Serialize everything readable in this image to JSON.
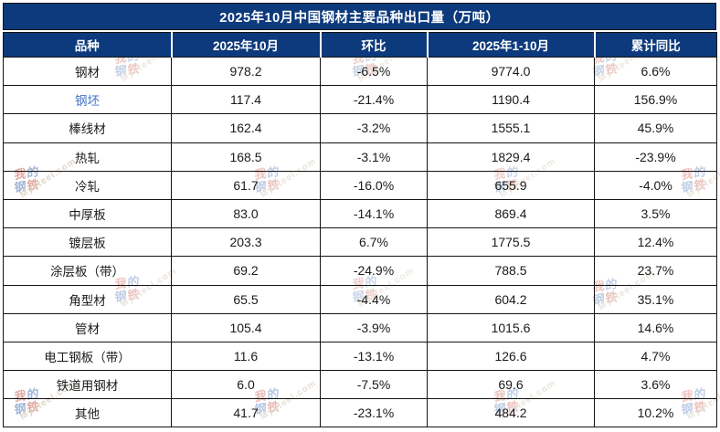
{
  "chart_data": {
    "type": "table",
    "title": "2025年10月中国钢材主要品种出口量（万吨）",
    "columns": [
      "品种",
      "2025年10月",
      "环比",
      "2025年1-10月",
      "累计同比"
    ],
    "rows": [
      [
        "钢材",
        "978.2",
        "-6.5%",
        "9774.0",
        "6.6%"
      ],
      [
        "钢坯",
        "117.4",
        "-21.4%",
        "1190.4",
        "156.9%"
      ],
      [
        "棒线材",
        "162.4",
        "-3.2%",
        "1555.1",
        "45.9%"
      ],
      [
        "热轧",
        "168.5",
        "-3.1%",
        "1829.4",
        "-23.9%"
      ],
      [
        "冷轧",
        "61.7",
        "-16.0%",
        "655.9",
        "-4.0%"
      ],
      [
        "中厚板",
        "83.0",
        "-14.1%",
        "869.4",
        "3.5%"
      ],
      [
        "镀层板",
        "203.3",
        "6.7%",
        "1775.5",
        "12.4%"
      ],
      [
        "涂层板（带）",
        "69.2",
        "-24.9%",
        "788.5",
        "23.7%"
      ],
      [
        "角型材",
        "65.5",
        "-4.4%",
        "604.2",
        "35.1%"
      ],
      [
        "管材",
        "105.4",
        "-3.9%",
        "1015.6",
        "14.6%"
      ],
      [
        "电工钢板（带）",
        "11.6",
        "-13.1%",
        "126.6",
        "4.7%"
      ],
      [
        "铁道用钢材",
        "6.0",
        "-7.5%",
        "69.6",
        "3.6%"
      ],
      [
        "其他",
        "41.7",
        "-23.1%",
        "484.2",
        "10.2%"
      ]
    ]
  },
  "ui": {
    "link_variety": "钢坯",
    "watermark": {
      "logo_chars": [
        "我",
        "的",
        "钢",
        "铁"
      ],
      "text": "Mysteel.com"
    },
    "colors": {
      "header_bg": "#0d3a7c",
      "link_blue": "#4472c4",
      "grid_border": "#141414",
      "wm_red": "#c0392b",
      "wm_blue": "#2f5caa",
      "wm_text": "#b9a489"
    }
  }
}
